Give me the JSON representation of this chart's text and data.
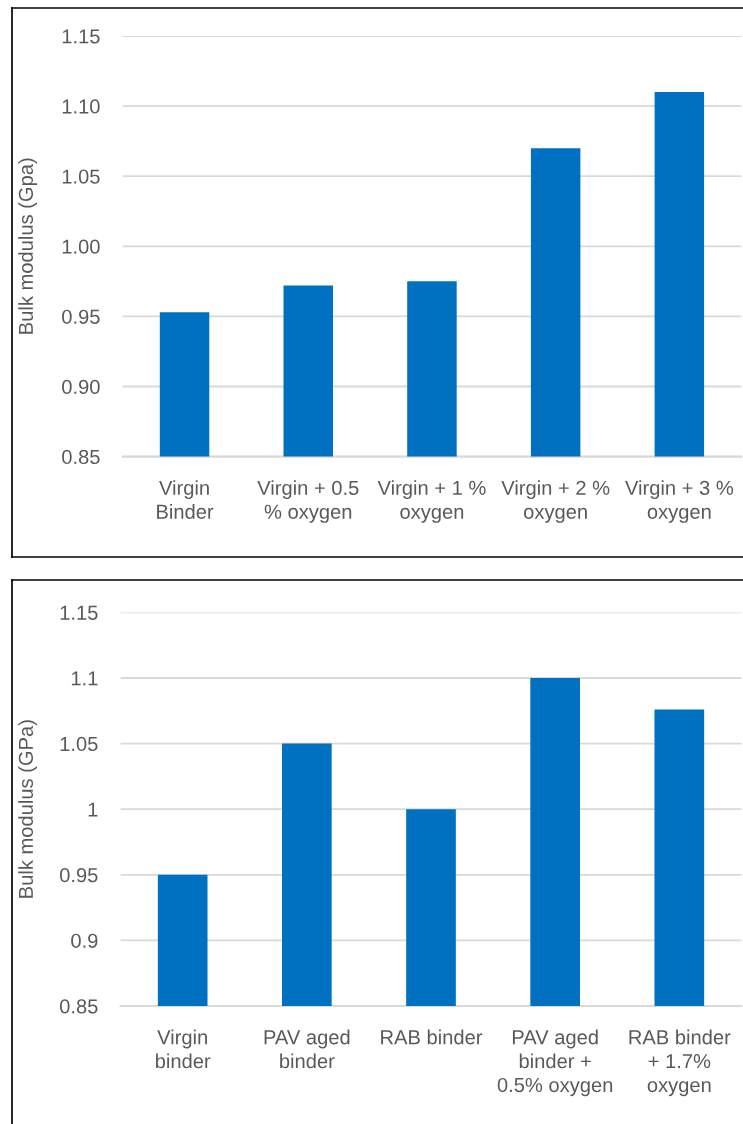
{
  "chart_data": [
    {
      "type": "bar",
      "categories": [
        "Virgin\nBinder",
        "Virgin + 0.5\n% oxygen",
        "Virgin + 1 %\noxygen",
        "Virgin + 2 %\noxygen",
        "Virgin + 3 %\noxygen"
      ],
      "values": [
        0.953,
        0.972,
        0.975,
        1.07,
        1.11
      ],
      "color": "#0070c0",
      "ylabel": "Bulk modulus (Gpa)",
      "ylim": [
        0.85,
        1.15
      ],
      "yticks": [
        0.85,
        {
          "value": 0.9,
          "label": "0.90"
        },
        0.95,
        {
          "value": 1.0,
          "label": "1.00"
        },
        1.05,
        {
          "value": 1.1,
          "label": "1.10"
        },
        1.15
      ],
      "grid": "y"
    },
    {
      "type": "bar",
      "categories": [
        "Virgin\nbinder",
        "PAV aged\nbinder",
        "RAB binder",
        "PAV aged\nbinder +\n0.5% oxygen",
        "RAB binder\n+ 1.7%\noxygen"
      ],
      "values": [
        0.95,
        1.05,
        1.0,
        1.1,
        1.076
      ],
      "color": "#0070c0",
      "ylabel": "Bulk modulus (GPa)",
      "ylim": [
        0.85,
        1.15
      ],
      "yticks": [
        0.85,
        0.9,
        0.95,
        1,
        1.05,
        1.1,
        1.15
      ],
      "grid": "y"
    }
  ]
}
